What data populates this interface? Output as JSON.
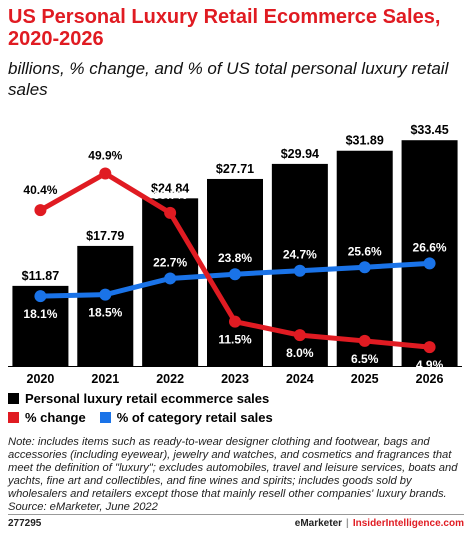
{
  "header": {
    "title": "US Personal Luxury Retail Ecommerce Sales, 2020-2026",
    "subtitle": "billions, % change, and % of US total personal luxury retail sales"
  },
  "colors": {
    "title": "#e01b22",
    "bars": "#000000",
    "change_line": "#e01b22",
    "share_line": "#1a73e8"
  },
  "chart_data": {
    "type": "bar",
    "categories": [
      "2020",
      "2021",
      "2022",
      "2023",
      "2024",
      "2025",
      "2026"
    ],
    "series": [
      {
        "name": "Personal luxury retail ecommerce sales",
        "type": "bar",
        "values": [
          11.87,
          17.79,
          24.84,
          27.71,
          29.94,
          31.89,
          33.45
        ],
        "labels": [
          "$11.87",
          "$17.79",
          "$24.84",
          "$27.71",
          "$29.94",
          "$31.89",
          "$33.45"
        ]
      },
      {
        "name": "% change",
        "type": "line",
        "values": [
          40.4,
          49.9,
          39.7,
          11.5,
          8.0,
          6.5,
          4.9
        ],
        "labels": [
          "40.4%",
          "49.9%",
          "39.7%",
          "11.5%",
          "8.0%",
          "6.5%",
          "4.9%"
        ]
      },
      {
        "name": "% of category retail sales",
        "type": "line",
        "values": [
          18.1,
          18.5,
          22.7,
          23.8,
          24.7,
          25.6,
          26.6
        ],
        "labels": [
          "18.1%",
          "18.5%",
          "22.7%",
          "23.8%",
          "24.7%",
          "25.6%",
          "26.6%"
        ]
      }
    ]
  },
  "legend": {
    "bar_label": "Personal luxury retail ecommerce sales",
    "change_label": "% change",
    "share_label": "% of category retail sales"
  },
  "note": "Note: includes items such as ready-to-wear designer clothing and footwear, bags and accessories (including eyewear), jewelry and watches, and cosmetics and fragrances that meet the definition of \"luxury\"; excludes automobiles, travel and leisure services, boats and yachts, fine art and collectibles, and fine wines and spirits; includes goods sold by wholesalers and retailers except those that mainly resell other companies' luxury brands.",
  "source": "Source: eMarketer, June 2022",
  "footer": {
    "id": "277295",
    "brand_emarketer": "eMarketer",
    "separator": "|",
    "brand_insider": "InsiderIntelligence.com"
  }
}
